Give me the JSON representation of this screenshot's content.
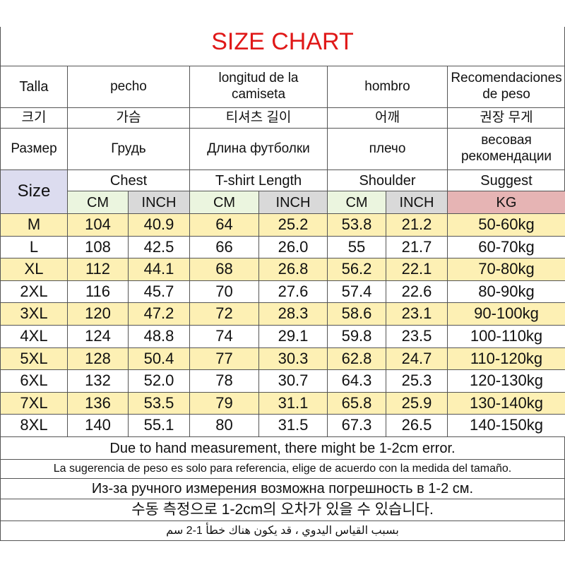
{
  "title": "SIZE CHART",
  "header_rows": [
    [
      "Talla",
      "pecho",
      "longitud de la camiseta",
      "hombro",
      "Recomendaciones de peso"
    ],
    [
      "크기",
      "가슴",
      "티셔츠 길이",
      "어깨",
      "권장 무게"
    ],
    [
      "Размер",
      "Грудь",
      "Длина футболки",
      "плечо",
      "весовая рекомендации"
    ]
  ],
  "size_label": "Size",
  "groups": [
    "Chest",
    "T-shirt Length",
    "Shoulder",
    "Suggest"
  ],
  "units": [
    "CM",
    "INCH",
    "CM",
    "INCH",
    "CM",
    "INCH",
    "KG"
  ],
  "rows": [
    [
      "M",
      "104",
      "40.9",
      "64",
      "25.2",
      "53.8",
      "21.2",
      "50-60kg"
    ],
    [
      "L",
      "108",
      "42.5",
      "66",
      "26.0",
      "55",
      "21.7",
      "60-70kg"
    ],
    [
      "XL",
      "112",
      "44.1",
      "68",
      "26.8",
      "56.2",
      "22.1",
      "70-80kg"
    ],
    [
      "2XL",
      "116",
      "45.7",
      "70",
      "27.6",
      "57.4",
      "22.6",
      "80-90kg"
    ],
    [
      "3XL",
      "120",
      "47.2",
      "72",
      "28.3",
      "58.6",
      "23.1",
      "90-100kg"
    ],
    [
      "4XL",
      "124",
      "48.8",
      "74",
      "29.1",
      "59.8",
      "23.5",
      "100-110kg"
    ],
    [
      "5XL",
      "128",
      "50.4",
      "77",
      "30.3",
      "62.8",
      "24.7",
      "110-120kg"
    ],
    [
      "6XL",
      "132",
      "52.0",
      "78",
      "30.7",
      "64.3",
      "25.3",
      "120-130kg"
    ],
    [
      "7XL",
      "136",
      "53.5",
      "79",
      "31.1",
      "65.8",
      "25.9",
      "130-140kg"
    ],
    [
      "8XL",
      "140",
      "55.1",
      "80",
      "31.5",
      "67.3",
      "26.5",
      "140-150kg"
    ]
  ],
  "notes": [
    "Due to hand measurement, there might be 1-2cm error.",
    "La sugerencia de peso es solo para referencia, elige de acuerdo con la medida del tamaño.",
    "Из-за ручного измерения возможна погрешность в 1-2 см.",
    "수동 측정으로 1-2cm의 오차가 있을 수 있습니다.",
    "بسبب القياس اليدوي ، قد يكون هناك خطأ 1-2 سم"
  ]
}
